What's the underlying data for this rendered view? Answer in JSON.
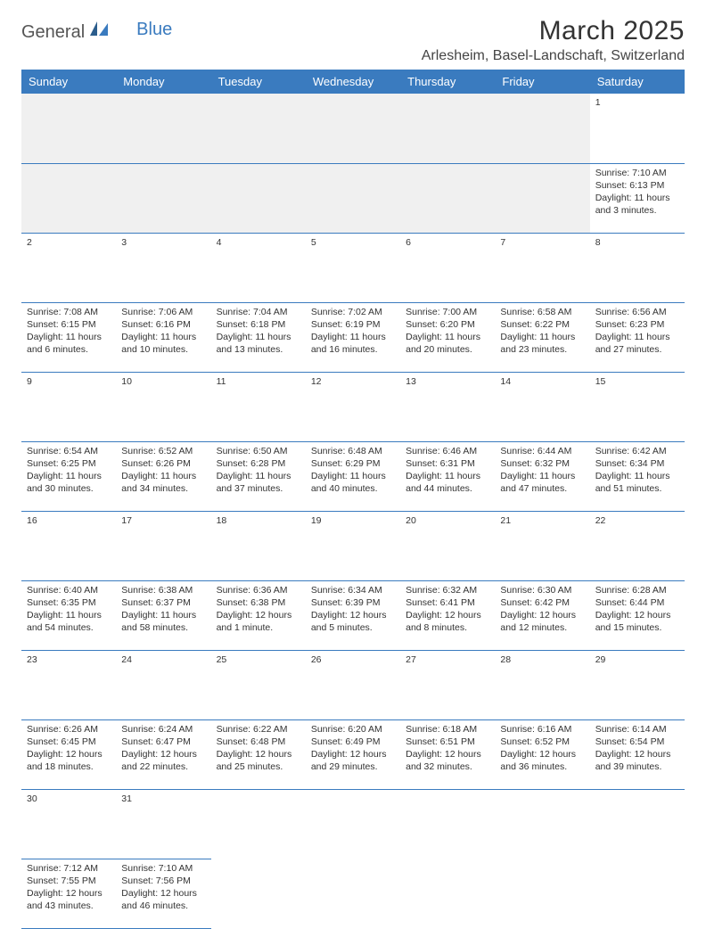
{
  "logo": {
    "general": "General",
    "blue": "Blue"
  },
  "title": "March 2025",
  "location": "Arlesheim, Basel-Landschaft, Switzerland",
  "colors": {
    "header_bg": "#3a7bbf",
    "header_text": "#ffffff",
    "daynum_bg": "#eeeeee",
    "border": "#3a7bbf",
    "text": "#333333",
    "logo_gray": "#555555",
    "logo_blue": "#3a7bbf"
  },
  "weekdays": [
    "Sunday",
    "Monday",
    "Tuesday",
    "Wednesday",
    "Thursday",
    "Friday",
    "Saturday"
  ],
  "weeks": [
    [
      null,
      null,
      null,
      null,
      null,
      null,
      {
        "n": "1",
        "sr": "Sunrise: 7:10 AM",
        "ss": "Sunset: 6:13 PM",
        "dl": "Daylight: 11 hours and 3 minutes."
      }
    ],
    [
      {
        "n": "2",
        "sr": "Sunrise: 7:08 AM",
        "ss": "Sunset: 6:15 PM",
        "dl": "Daylight: 11 hours and 6 minutes."
      },
      {
        "n": "3",
        "sr": "Sunrise: 7:06 AM",
        "ss": "Sunset: 6:16 PM",
        "dl": "Daylight: 11 hours and 10 minutes."
      },
      {
        "n": "4",
        "sr": "Sunrise: 7:04 AM",
        "ss": "Sunset: 6:18 PM",
        "dl": "Daylight: 11 hours and 13 minutes."
      },
      {
        "n": "5",
        "sr": "Sunrise: 7:02 AM",
        "ss": "Sunset: 6:19 PM",
        "dl": "Daylight: 11 hours and 16 minutes."
      },
      {
        "n": "6",
        "sr": "Sunrise: 7:00 AM",
        "ss": "Sunset: 6:20 PM",
        "dl": "Daylight: 11 hours and 20 minutes."
      },
      {
        "n": "7",
        "sr": "Sunrise: 6:58 AM",
        "ss": "Sunset: 6:22 PM",
        "dl": "Daylight: 11 hours and 23 minutes."
      },
      {
        "n": "8",
        "sr": "Sunrise: 6:56 AM",
        "ss": "Sunset: 6:23 PM",
        "dl": "Daylight: 11 hours and 27 minutes."
      }
    ],
    [
      {
        "n": "9",
        "sr": "Sunrise: 6:54 AM",
        "ss": "Sunset: 6:25 PM",
        "dl": "Daylight: 11 hours and 30 minutes."
      },
      {
        "n": "10",
        "sr": "Sunrise: 6:52 AM",
        "ss": "Sunset: 6:26 PM",
        "dl": "Daylight: 11 hours and 34 minutes."
      },
      {
        "n": "11",
        "sr": "Sunrise: 6:50 AM",
        "ss": "Sunset: 6:28 PM",
        "dl": "Daylight: 11 hours and 37 minutes."
      },
      {
        "n": "12",
        "sr": "Sunrise: 6:48 AM",
        "ss": "Sunset: 6:29 PM",
        "dl": "Daylight: 11 hours and 40 minutes."
      },
      {
        "n": "13",
        "sr": "Sunrise: 6:46 AM",
        "ss": "Sunset: 6:31 PM",
        "dl": "Daylight: 11 hours and 44 minutes."
      },
      {
        "n": "14",
        "sr": "Sunrise: 6:44 AM",
        "ss": "Sunset: 6:32 PM",
        "dl": "Daylight: 11 hours and 47 minutes."
      },
      {
        "n": "15",
        "sr": "Sunrise: 6:42 AM",
        "ss": "Sunset: 6:34 PM",
        "dl": "Daylight: 11 hours and 51 minutes."
      }
    ],
    [
      {
        "n": "16",
        "sr": "Sunrise: 6:40 AM",
        "ss": "Sunset: 6:35 PM",
        "dl": "Daylight: 11 hours and 54 minutes."
      },
      {
        "n": "17",
        "sr": "Sunrise: 6:38 AM",
        "ss": "Sunset: 6:37 PM",
        "dl": "Daylight: 11 hours and 58 minutes."
      },
      {
        "n": "18",
        "sr": "Sunrise: 6:36 AM",
        "ss": "Sunset: 6:38 PM",
        "dl": "Daylight: 12 hours and 1 minute."
      },
      {
        "n": "19",
        "sr": "Sunrise: 6:34 AM",
        "ss": "Sunset: 6:39 PM",
        "dl": "Daylight: 12 hours and 5 minutes."
      },
      {
        "n": "20",
        "sr": "Sunrise: 6:32 AM",
        "ss": "Sunset: 6:41 PM",
        "dl": "Daylight: 12 hours and 8 minutes."
      },
      {
        "n": "21",
        "sr": "Sunrise: 6:30 AM",
        "ss": "Sunset: 6:42 PM",
        "dl": "Daylight: 12 hours and 12 minutes."
      },
      {
        "n": "22",
        "sr": "Sunrise: 6:28 AM",
        "ss": "Sunset: 6:44 PM",
        "dl": "Daylight: 12 hours and 15 minutes."
      }
    ],
    [
      {
        "n": "23",
        "sr": "Sunrise: 6:26 AM",
        "ss": "Sunset: 6:45 PM",
        "dl": "Daylight: 12 hours and 18 minutes."
      },
      {
        "n": "24",
        "sr": "Sunrise: 6:24 AM",
        "ss": "Sunset: 6:47 PM",
        "dl": "Daylight: 12 hours and 22 minutes."
      },
      {
        "n": "25",
        "sr": "Sunrise: 6:22 AM",
        "ss": "Sunset: 6:48 PM",
        "dl": "Daylight: 12 hours and 25 minutes."
      },
      {
        "n": "26",
        "sr": "Sunrise: 6:20 AM",
        "ss": "Sunset: 6:49 PM",
        "dl": "Daylight: 12 hours and 29 minutes."
      },
      {
        "n": "27",
        "sr": "Sunrise: 6:18 AM",
        "ss": "Sunset: 6:51 PM",
        "dl": "Daylight: 12 hours and 32 minutes."
      },
      {
        "n": "28",
        "sr": "Sunrise: 6:16 AM",
        "ss": "Sunset: 6:52 PM",
        "dl": "Daylight: 12 hours and 36 minutes."
      },
      {
        "n": "29",
        "sr": "Sunrise: 6:14 AM",
        "ss": "Sunset: 6:54 PM",
        "dl": "Daylight: 12 hours and 39 minutes."
      }
    ],
    [
      {
        "n": "30",
        "sr": "Sunrise: 7:12 AM",
        "ss": "Sunset: 7:55 PM",
        "dl": "Daylight: 12 hours and 43 minutes."
      },
      {
        "n": "31",
        "sr": "Sunrise: 7:10 AM",
        "ss": "Sunset: 7:56 PM",
        "dl": "Daylight: 12 hours and 46 minutes."
      },
      null,
      null,
      null,
      null,
      null
    ]
  ]
}
